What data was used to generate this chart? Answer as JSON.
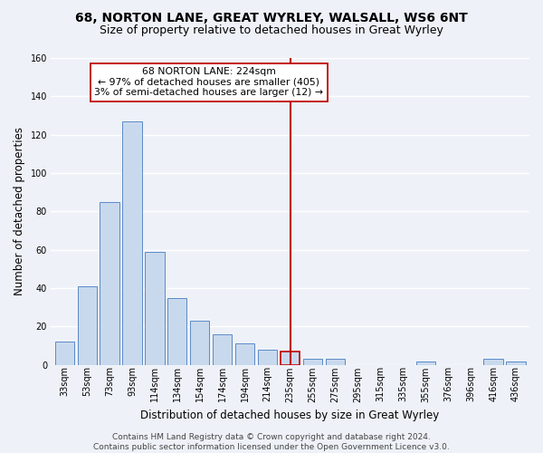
{
  "title": "68, NORTON LANE, GREAT WYRLEY, WALSALL, WS6 6NT",
  "subtitle": "Size of property relative to detached houses in Great Wyrley",
  "xlabel": "Distribution of detached houses by size in Great Wyrley",
  "ylabel": "Number of detached properties",
  "bin_labels": [
    "33sqm",
    "53sqm",
    "73sqm",
    "93sqm",
    "114sqm",
    "134sqm",
    "154sqm",
    "174sqm",
    "194sqm",
    "214sqm",
    "235sqm",
    "255sqm",
    "275sqm",
    "295sqm",
    "315sqm",
    "335sqm",
    "355sqm",
    "376sqm",
    "396sqm",
    "416sqm",
    "436sqm"
  ],
  "bar_heights": [
    12,
    41,
    85,
    127,
    59,
    35,
    23,
    16,
    11,
    8,
    7,
    3,
    3,
    0,
    0,
    0,
    2,
    0,
    0,
    3,
    2
  ],
  "bar_color": "#c9d9ed",
  "bar_edge_color": "#5b8ac7",
  "highlight_bar_index": 10,
  "highlight_bar_edge_color": "#c00000",
  "vline_x": 10.0,
  "vline_color": "#c00000",
  "annotation_text": "68 NORTON LANE: 224sqm\n← 97% of detached houses are smaller (405)\n3% of semi-detached houses are larger (12) →",
  "annotation_box_color": "#ffffff",
  "annotation_box_edge_color": "#c00000",
  "ylim": [
    0,
    160
  ],
  "yticks": [
    0,
    20,
    40,
    60,
    80,
    100,
    120,
    140,
    160
  ],
  "footer": "Contains HM Land Registry data © Crown copyright and database right 2024.\nContains public sector information licensed under the Open Government Licence v3.0.",
  "bg_color": "#eef2f8",
  "plot_bg_color": "#eef2f8",
  "grid_color": "#ffffff",
  "title_fontsize": 10,
  "subtitle_fontsize": 9,
  "axis_label_fontsize": 8.5,
  "tick_fontsize": 7,
  "footer_fontsize": 6.5
}
